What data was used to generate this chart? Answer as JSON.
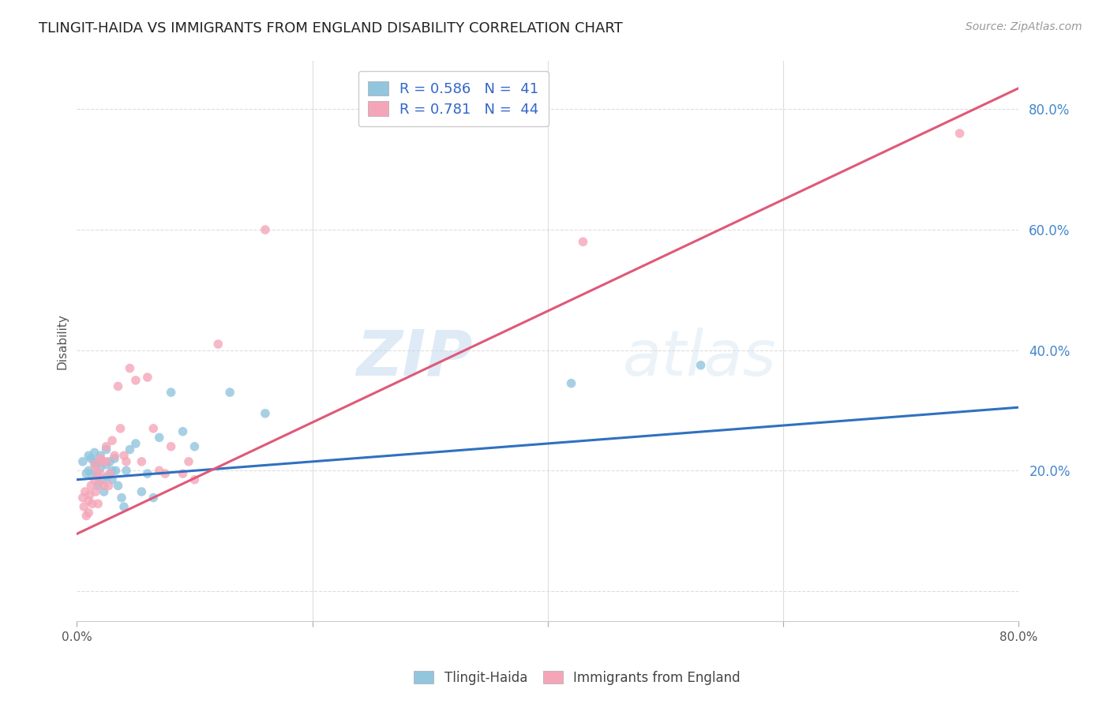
{
  "title": "TLINGIT-HAIDA VS IMMIGRANTS FROM ENGLAND DISABILITY CORRELATION CHART",
  "source": "Source: ZipAtlas.com",
  "ylabel": "Disability",
  "watermark_zip": "ZIP",
  "watermark_atlas": "atlas",
  "legend_r1": "R = 0.586",
  "legend_n1": "N =  41",
  "legend_r2": "R = 0.781",
  "legend_n2": "N =  44",
  "xlim": [
    0.0,
    0.8
  ],
  "ylim": [
    -0.05,
    0.88
  ],
  "yticks": [
    0.0,
    0.2,
    0.4,
    0.6,
    0.8
  ],
  "ytick_labels": [
    "",
    "20.0%",
    "40.0%",
    "60.0%",
    "80.0%"
  ],
  "xticks": [
    0.0,
    0.2,
    0.4,
    0.6,
    0.8
  ],
  "xtick_labels": [
    "0.0%",
    "",
    "",
    "",
    "80.0%"
  ],
  "blue_color": "#92C5DE",
  "pink_color": "#F4A6B8",
  "blue_line_color": "#3070C0",
  "pink_line_color": "#E05878",
  "tlingit_x": [
    0.005,
    0.008,
    0.01,
    0.01,
    0.012,
    0.012,
    0.015,
    0.015,
    0.016,
    0.017,
    0.018,
    0.02,
    0.02,
    0.021,
    0.022,
    0.023,
    0.025,
    0.025,
    0.026,
    0.028,
    0.03,
    0.03,
    0.032,
    0.033,
    0.035,
    0.038,
    0.04,
    0.042,
    0.045,
    0.05,
    0.055,
    0.06,
    0.065,
    0.07,
    0.08,
    0.09,
    0.1,
    0.13,
    0.16,
    0.42,
    0.53
  ],
  "tlingit_y": [
    0.215,
    0.195,
    0.225,
    0.2,
    0.22,
    0.195,
    0.23,
    0.215,
    0.21,
    0.195,
    0.175,
    0.225,
    0.205,
    0.215,
    0.185,
    0.165,
    0.235,
    0.21,
    0.19,
    0.215,
    0.185,
    0.2,
    0.22,
    0.2,
    0.175,
    0.155,
    0.14,
    0.2,
    0.235,
    0.245,
    0.165,
    0.195,
    0.155,
    0.255,
    0.33,
    0.265,
    0.24,
    0.33,
    0.295,
    0.345,
    0.375
  ],
  "england_x": [
    0.005,
    0.006,
    0.007,
    0.008,
    0.01,
    0.01,
    0.011,
    0.012,
    0.013,
    0.015,
    0.015,
    0.016,
    0.017,
    0.018,
    0.019,
    0.02,
    0.02,
    0.022,
    0.023,
    0.025,
    0.025,
    0.027,
    0.028,
    0.03,
    0.032,
    0.035,
    0.037,
    0.04,
    0.042,
    0.045,
    0.05,
    0.055,
    0.06,
    0.065,
    0.07,
    0.075,
    0.08,
    0.09,
    0.095,
    0.1,
    0.12,
    0.16,
    0.43,
    0.75
  ],
  "england_y": [
    0.155,
    0.14,
    0.165,
    0.125,
    0.15,
    0.13,
    0.16,
    0.175,
    0.145,
    0.21,
    0.185,
    0.165,
    0.2,
    0.145,
    0.18,
    0.22,
    0.195,
    0.215,
    0.175,
    0.24,
    0.215,
    0.175,
    0.195,
    0.25,
    0.225,
    0.34,
    0.27,
    0.225,
    0.215,
    0.37,
    0.35,
    0.215,
    0.355,
    0.27,
    0.2,
    0.195,
    0.24,
    0.195,
    0.215,
    0.185,
    0.41,
    0.6,
    0.58,
    0.76
  ],
  "blue_line_x": [
    0.0,
    0.8
  ],
  "blue_line_y": [
    0.185,
    0.305
  ],
  "pink_line_x": [
    0.0,
    0.8
  ],
  "pink_line_y": [
    0.095,
    0.835
  ]
}
